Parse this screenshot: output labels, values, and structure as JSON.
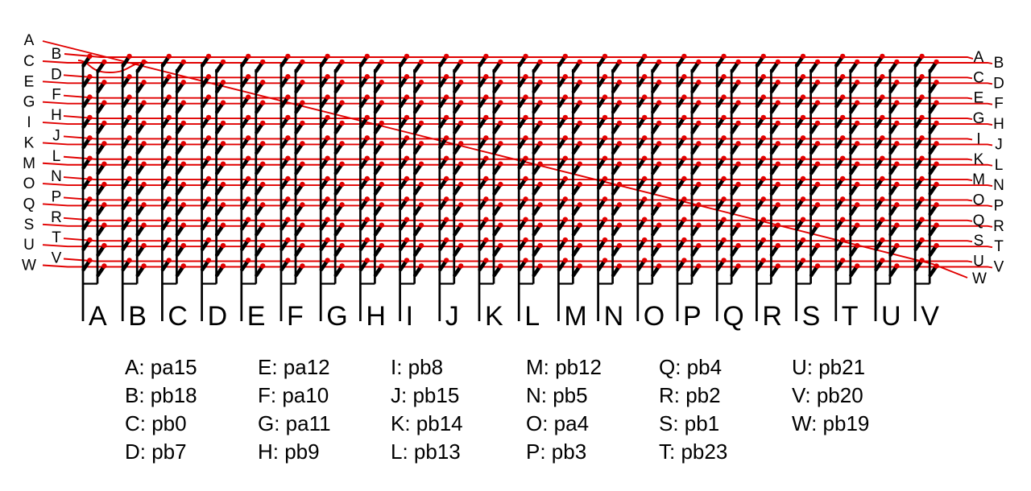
{
  "diagram": {
    "type": "keyboard-matrix-wiring",
    "row_labels_left": [
      "A",
      "B",
      "C",
      "D",
      "E",
      "F",
      "G",
      "H",
      "I",
      "J",
      "K",
      "L",
      "M",
      "N",
      "O",
      "P",
      "Q",
      "R",
      "S",
      "T",
      "U",
      "V",
      "W"
    ],
    "row_labels_right": [
      "A",
      "B",
      "C",
      "D",
      "E",
      "F",
      "G",
      "H",
      "I",
      "J",
      "K",
      "L",
      "M",
      "N",
      "O",
      "P",
      "Q",
      "R",
      "S",
      "T",
      "U",
      "V",
      "W"
    ],
    "column_labels": [
      "A",
      "B",
      "C",
      "D",
      "E",
      "F",
      "G",
      "H",
      "I",
      "J",
      "K",
      "L",
      "M",
      "N",
      "O",
      "P",
      "Q",
      "R",
      "S",
      "T",
      "U",
      "V"
    ],
    "colors": {
      "wire": "#e10000",
      "contact_dot": "#e10000",
      "element": "#000000",
      "background": "#ffffff",
      "text": "#000000"
    }
  },
  "legend": {
    "separator": ": ",
    "columns": [
      [
        {
          "key": "A",
          "pin": "pa15"
        },
        {
          "key": "B",
          "pin": "pb18"
        },
        {
          "key": "C",
          "pin": "pb0"
        },
        {
          "key": "D",
          "pin": "pb7"
        }
      ],
      [
        {
          "key": "E",
          "pin": "pa12"
        },
        {
          "key": "F",
          "pin": "pa10"
        },
        {
          "key": "G",
          "pin": "pa11"
        },
        {
          "key": "H",
          "pin": "pb9"
        }
      ],
      [
        {
          "key": "I",
          "pin": "pb8"
        },
        {
          "key": "J",
          "pin": "pb15"
        },
        {
          "key": "K",
          "pin": "pb14"
        },
        {
          "key": "L",
          "pin": "pb13"
        }
      ],
      [
        {
          "key": "M",
          "pin": "pb12"
        },
        {
          "key": "N",
          "pin": "pb5"
        },
        {
          "key": "O",
          "pin": "pa4"
        },
        {
          "key": "P",
          "pin": "pb3"
        }
      ],
      [
        {
          "key": "Q",
          "pin": "pb4"
        },
        {
          "key": "R",
          "pin": "pb2"
        },
        {
          "key": "S",
          "pin": "pb1"
        },
        {
          "key": "T",
          "pin": "pb23"
        }
      ],
      [
        {
          "key": "U",
          "pin": "pb21"
        },
        {
          "key": "V",
          "pin": "pb20"
        },
        {
          "key": "W",
          "pin": "pb19"
        }
      ]
    ]
  }
}
